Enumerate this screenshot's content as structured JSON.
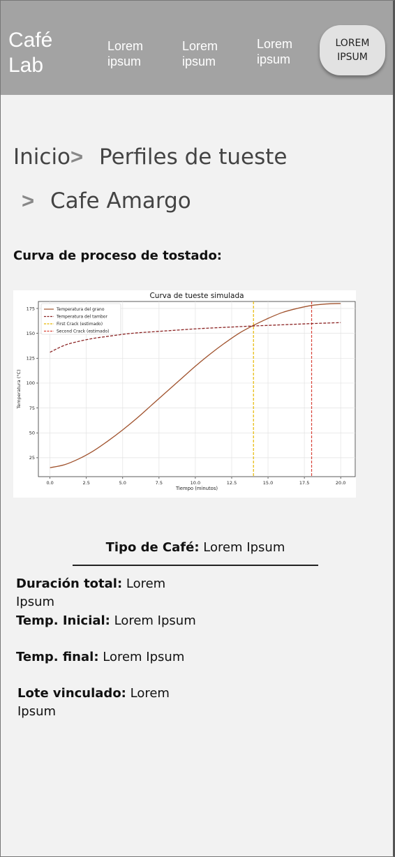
{
  "header": {
    "brand": "Café Lab",
    "nav": [
      "Lorem ipsum",
      "Lorem ipsum",
      "Lorem ipsum"
    ],
    "cta": "LOREM IPSUM"
  },
  "breadcrumb": {
    "home": "Inicio",
    "separator": ">",
    "profiles": "Perfiles de tueste",
    "current": "Cafe Amargo"
  },
  "section_title": "Curva de proceso de tostado:",
  "chart_data": {
    "type": "line",
    "title": "Curva de tueste simulada",
    "xlabel": "Tiempo (minutos)",
    "ylabel": "Temperatura (°C)",
    "xlim": [
      -0.8,
      21
    ],
    "ylim": [
      6,
      182
    ],
    "xticks": [
      0.0,
      2.5,
      5.0,
      7.5,
      10.0,
      12.5,
      15.0,
      17.5,
      20.0
    ],
    "xtick_labels": [
      "0.0",
      "2.5",
      "5.0",
      "7.5",
      "10.0",
      "12.5",
      "15.0",
      "17.5",
      "20.0"
    ],
    "yticks": [
      25,
      50,
      75,
      100,
      125,
      150,
      175
    ],
    "ytick_labels": [
      "25",
      "50",
      "75",
      "100",
      "125",
      "150",
      "175"
    ],
    "grid": true,
    "legend_position": "top-left",
    "x": [
      0,
      1,
      2,
      3,
      4,
      5,
      6,
      7,
      8,
      9,
      10,
      11,
      12,
      13,
      14,
      15,
      16,
      17,
      18,
      19,
      20
    ],
    "series": [
      {
        "name": "Temperatura del grano",
        "style": "solid",
        "color": "#a0522d",
        "values": [
          15,
          18,
          24,
          32,
          42,
          53,
          65,
          78,
          91,
          104,
          117,
          129,
          140,
          150,
          158,
          165,
          171,
          175,
          178,
          179.5,
          180
        ]
      },
      {
        "name": "Temperatura del tambor",
        "style": "dashed",
        "color": "#8b2323",
        "values": [
          131,
          138,
          142,
          145,
          147,
          149,
          150.5,
          151.5,
          152.5,
          153.5,
          154.5,
          155.3,
          156,
          156.7,
          157.4,
          158,
          158.6,
          159.2,
          159.8,
          160.3,
          160.8
        ]
      }
    ],
    "vlines": [
      {
        "name": "First Crack (estimado)",
        "x": 14.0,
        "color": "#e6b800",
        "style": "dashed"
      },
      {
        "name": "Second Crack (estimado)",
        "x": 18.0,
        "color": "#d9453a",
        "style": "dashed"
      }
    ]
  },
  "details": {
    "coffee_type_label": "Tipo de Café:",
    "coffee_type_value": " Lorem Ipsum",
    "duration_label": "Duración total:",
    "duration_value": " Lorem Ipsum",
    "temp_initial_label": "Temp. Inicial:",
    "temp_initial_value": " Lorem Ipsum",
    "temp_final_label": "Temp. final:",
    "temp_final_value": " Lorem Ipsum",
    "batch_label": "Lote vinculado:",
    "batch_value": " Lorem Ipsum"
  }
}
